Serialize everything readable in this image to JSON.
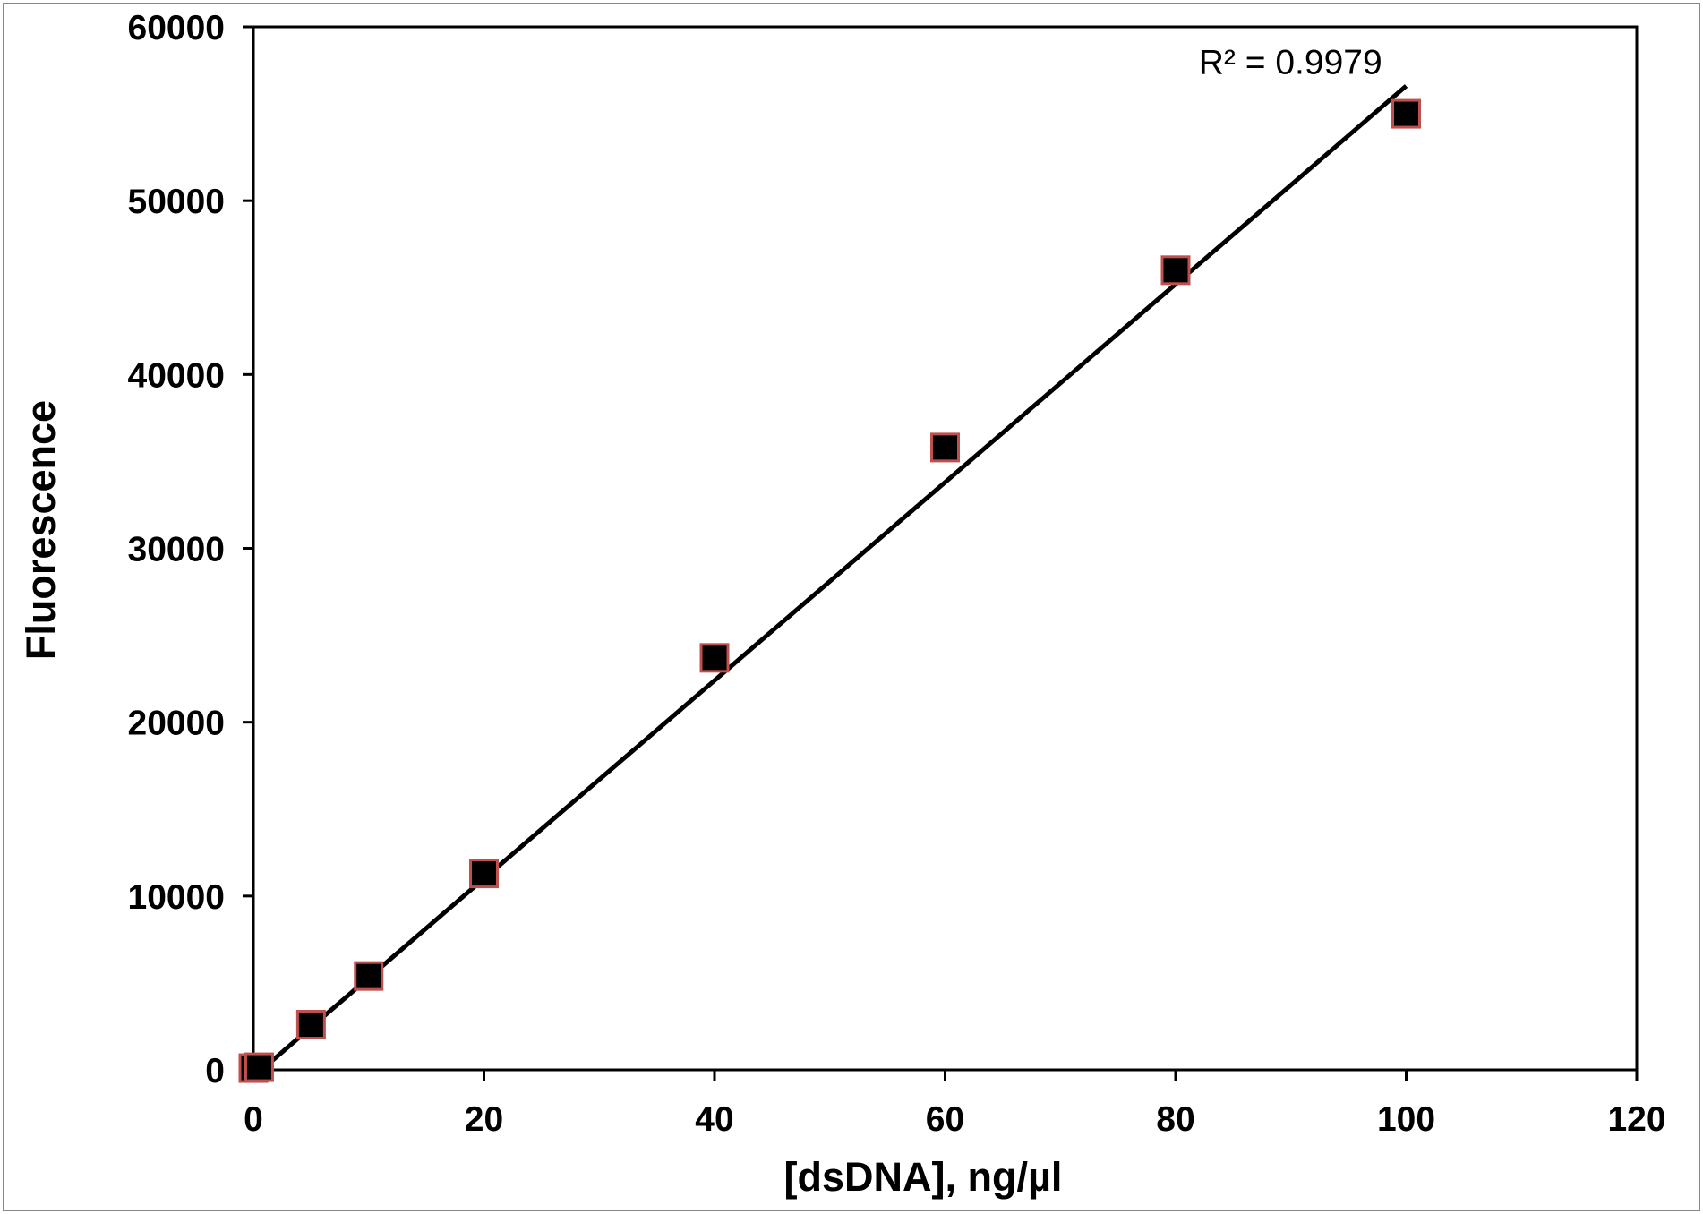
{
  "chart_data": {
    "type": "scatter",
    "title": "",
    "xlabel": "[dsDNA], ng/µl",
    "ylabel": "Fluorescence",
    "xlim": [
      0,
      120
    ],
    "ylim": [
      0,
      60000
    ],
    "x_ticks": [
      0,
      20,
      40,
      60,
      80,
      100,
      120
    ],
    "y_ticks": [
      0,
      10000,
      20000,
      30000,
      40000,
      50000,
      60000
    ],
    "grid": false,
    "legend": "none",
    "series": [
      {
        "x": [
          0,
          0.5,
          5,
          10,
          20,
          40,
          60,
          80,
          100
        ],
        "y": [
          100,
          150,
          2600,
          5400,
          11300,
          23700,
          35800,
          46000,
          55000
        ]
      }
    ],
    "trendline": {
      "type": "linear",
      "slope": 570,
      "intercept": -400,
      "x_range": [
        0,
        100
      ]
    },
    "annotations": [
      {
        "text": "R² = 0.9979",
        "x": 82,
        "y": 57300
      }
    ],
    "colors": {
      "marker_fill": "#000000",
      "marker_edge": "#c0504d",
      "trendline": "#000000",
      "axis": "#000000",
      "frame": "#888888"
    }
  }
}
